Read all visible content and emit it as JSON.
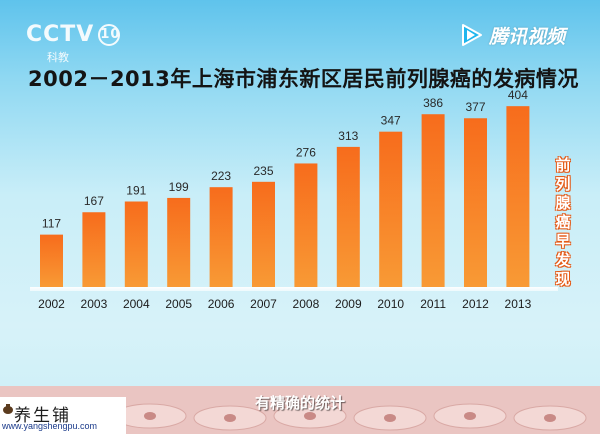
{
  "header": {
    "broadcaster_logo": "CCTV",
    "channel_number": "10",
    "channel_name": "科教",
    "video_platform": "腾讯视频"
  },
  "chart_data": {
    "type": "bar",
    "title": "2002－2013年上海市浦东新区居民前列腺癌的发病情况",
    "categories": [
      "2002",
      "2003",
      "2004",
      "2005",
      "2006",
      "2007",
      "2008",
      "2009",
      "2010",
      "2011",
      "2012",
      "2013"
    ],
    "values": [
      117,
      167,
      191,
      199,
      223,
      235,
      276,
      313,
      347,
      386,
      377,
      404
    ],
    "data_labels": [
      "117",
      "167",
      "191",
      "199",
      "223",
      "235",
      "276",
      "313",
      "347",
      "386",
      "377",
      "404"
    ],
    "ylim": [
      0,
      420
    ],
    "grid": false,
    "bar_color": "#f36a1d",
    "annotation": "前列腺癌早发现"
  },
  "caption": "有精确的统计",
  "watermark": {
    "logo_text": "养生铺",
    "url": "www.yangshengpu.com"
  }
}
